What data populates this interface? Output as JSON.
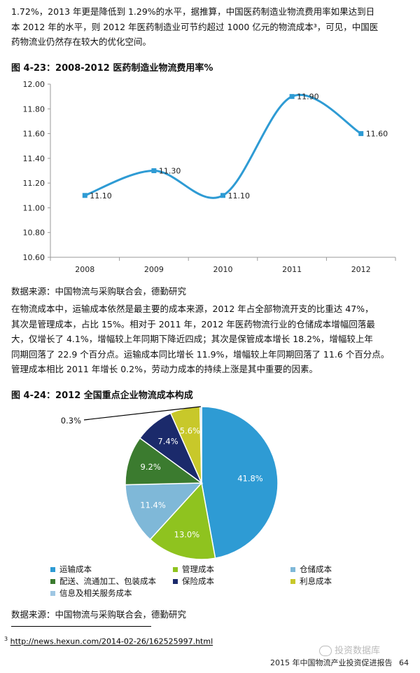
{
  "paragraph1": [
    "1.72%，2013 年更是降低到 1.29%的水平，据推算，中国医药制造业物流费用率如果达到日",
    "本 2012 年的水平，则 2012 年医药制造业可节约超过 1000 亿元的物流成本³，可见，中国医",
    "药物流业仍然存在较大的优化空间。"
  ],
  "figure1": {
    "title": "图 4-23：2008-2012 医药制造业物流费用率%",
    "source": "数据来源：中国物流与采购联合会，德勤研究"
  },
  "chart_data": [
    {
      "type": "line",
      "title": "图 4-23：2008-2012 医药制造业物流费用率%",
      "categories": [
        "2008",
        "2009",
        "2010",
        "2011",
        "2012"
      ],
      "series": [
        {
          "values": [
            11.1,
            11.3,
            11.1,
            11.9,
            11.6
          ]
        }
      ],
      "data_labels": [
        "11.10",
        "11.30",
        "11.10",
        "11.90",
        "11.60"
      ],
      "ylim": [
        10.6,
        12.0
      ],
      "yticks": [
        "12.00",
        "11.80",
        "11.60",
        "11.40",
        "11.20",
        "11.00",
        "10.80",
        "10.60"
      ],
      "smooth": true,
      "color": "#2e9bd4",
      "grid": false
    },
    {
      "type": "pie",
      "title": "图 4-24：2012 全国重点企业物流成本构成",
      "slices": [
        {
          "label": "运输成本",
          "value": 41.8,
          "text": "41.8%",
          "color": "#2e9bd4"
        },
        {
          "label": "管理成本",
          "value": 13.0,
          "text": "13.0%",
          "color": "#8fc31f"
        },
        {
          "label": "仓储成本",
          "value": 11.4,
          "text": "11.4%",
          "color": "#7fb8d8"
        },
        {
          "label": "配送、流通加工、包装成本",
          "value": 9.2,
          "text": "9.2%",
          "color": "#3b7b2f"
        },
        {
          "label": "保险成本",
          "value": 7.4,
          "text": "7.4%",
          "color": "#1b2a6b"
        },
        {
          "label": "利息成本",
          "value": 5.6,
          "text": "5.6%",
          "color": "#c8c82a"
        },
        {
          "label": "信息及相关服务成本",
          "value": 0.3,
          "text": "0.3%",
          "color": "#9fc7e3"
        }
      ],
      "legend_placement": "bottom"
    }
  ],
  "paragraph2": [
    "在物流成本中，运输成本依然是最主要的成本来源，2012 年占全部物流开支的比重达 47%，",
    "其次是管理成本，占比 15%。相对于 2011 年，2012 年医药物流行业的仓储成本增幅回落最",
    "大，仅增长了 4.1%，增幅较上年同期下降近四成；其次是保管成本增长 18.2%，增幅较上年",
    "同期回落了 22.9 个百分点。运输成本同比增长 11.9%，增幅较上年同期回落了 11.6 个百分点。",
    "管理成本相比 2011 年增长 0.2%，劳动力成本的持续上涨是其中重要的因素。"
  ],
  "figure2": {
    "title": "图 4-24：2012 全国重点企业物流成本构成",
    "source": "数据来源：中国物流与采购联合会，德勤研究"
  },
  "footnote": {
    "mark": "3",
    "url": "http://news.hexun.com/2014-02-26/162525997.html"
  },
  "watermark": "投资数据库",
  "footer": {
    "report": "2015 年中国物流产业投资促进报告",
    "page": "64"
  }
}
